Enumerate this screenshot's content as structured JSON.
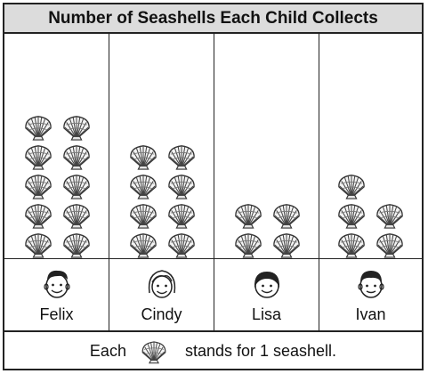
{
  "chart_data": {
    "type": "table",
    "title": "Number of Seashells Each Child Collects",
    "categories": [
      "Felix",
      "Cindy",
      "Lisa",
      "Ivan"
    ],
    "values": [
      10,
      8,
      4,
      5
    ],
    "key_prefix": "Each",
    "key_suffix": "stands for 1 seashell.",
    "symbol": "seashell-icon"
  }
}
